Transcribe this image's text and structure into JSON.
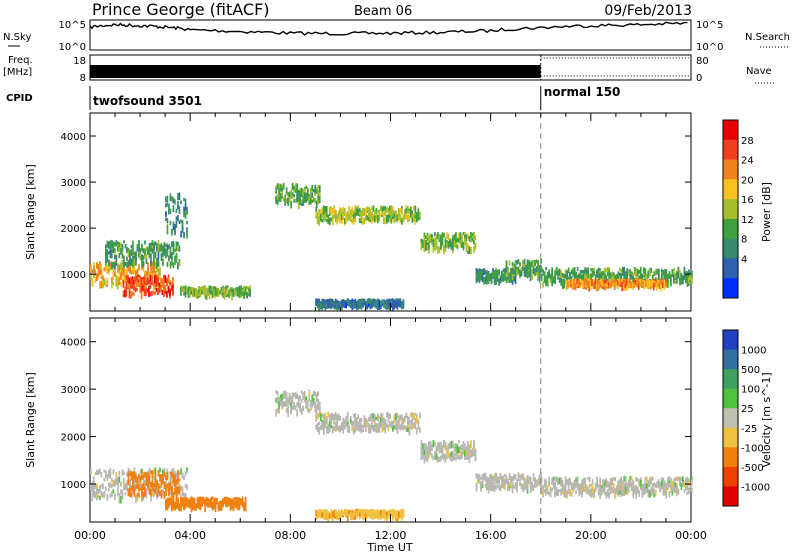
{
  "header": {
    "station": "Prince George (fitACF)",
    "beam": "Beam 06",
    "date": "09/Feb/2013"
  },
  "time_axis": {
    "ticks": [
      "00:00",
      "04:00",
      "08:00",
      "12:00",
      "16:00",
      "20:00",
      "00:00"
    ],
    "tick_hours": [
      0,
      4,
      8,
      12,
      16,
      20,
      24
    ],
    "label": "Time UT",
    "range_hours": [
      0,
      24
    ],
    "minor_step_hours": 1
  },
  "noise_panel": {
    "left_label": "N.Sky",
    "right_label": "N.Search",
    "left_ticks": [
      "10^5",
      "10^0"
    ],
    "right_ticks": [
      "10^5",
      "10^0"
    ]
  },
  "freq_panel": {
    "left_label": "Freq.",
    "left_unit": "[MHz]",
    "left_ticks": [
      "18",
      "8"
    ],
    "right_label": "Nave",
    "right_ticks": [
      "80",
      "0"
    ]
  },
  "cpid_panel": {
    "label": "CPID",
    "modes": [
      {
        "name": "twofsound 3501",
        "start_hour": 0,
        "end_hour": 18
      },
      {
        "name": "normal 150",
        "start_hour": 18,
        "end_hour": 24
      }
    ],
    "switch_hour": 18
  },
  "colors": {
    "power_scale": [
      "#0030ff",
      "#3060b0",
      "#3a8a70",
      "#40a040",
      "#a8c030",
      "#f8c020",
      "#f08020",
      "#f04020",
      "#e80000"
    ],
    "velocity_scale": [
      "#2040c0",
      "#3070a0",
      "#40a060",
      "#50c040",
      "#c0c0b0",
      "#f0c040",
      "#f08010",
      "#f04000",
      "#e00000"
    ],
    "ground_scatter": "#b8b8b0"
  },
  "chart_data": [
    {
      "type": "line",
      "title": "N.Sky / N.Search",
      "x_unit": "hours UT",
      "y_scale": "log",
      "ylim": [
        1,
        100000
      ],
      "series": [
        {
          "x": [
            0,
            1,
            2,
            3,
            4,
            6,
            8,
            10,
            12,
            14,
            16,
            18,
            20,
            22,
            24
          ],
          "values": [
            10000,
            30000,
            20000,
            10000,
            3000,
            1500,
            700,
            600,
            700,
            1000,
            2000,
            8000,
            20000,
            30000,
            60000
          ]
        }
      ]
    },
    {
      "type": "area",
      "title": "Freq. [MHz] / Nave",
      "x_unit": "hours UT",
      "segments": [
        {
          "x_start": 0,
          "x_end": 18,
          "fill": "solid",
          "freq_mhz_range": [
            8,
            18
          ]
        },
        {
          "x_start": 18,
          "x_end": 24,
          "fill": "dotted",
          "nave": [
            0,
            80
          ]
        }
      ]
    },
    {
      "type": "heatmap",
      "quantity": "Power",
      "colorbar_label": "Power [dB]",
      "colorbar_ticks": [
        4,
        8,
        12,
        16,
        20,
        24,
        28
      ],
      "zlim": [
        0,
        32
      ],
      "xlabel": "",
      "ylabel": "Slant Range [km]",
      "y_ticks": [
        1000,
        2000,
        3000,
        4000
      ],
      "xlim": [
        0,
        24
      ],
      "ylim": [
        200,
        4500
      ],
      "echo_bands": [
        {
          "x_start": 0.0,
          "x_end": 2.8,
          "range_center_km": 1050,
          "range_width_km": 500,
          "power_db": 20
        },
        {
          "x_start": 1.3,
          "x_end": 3.3,
          "range_center_km": 800,
          "range_width_km": 400,
          "power_db": 26
        },
        {
          "x_start": 0.6,
          "x_end": 3.6,
          "range_center_km": 1500,
          "range_width_km": 500,
          "power_db": 11
        },
        {
          "x_start": 3.0,
          "x_end": 3.9,
          "range_center_km": 2350,
          "range_width_km": 900,
          "power_db": 9
        },
        {
          "x_start": 3.6,
          "x_end": 6.4,
          "range_center_km": 680,
          "range_width_km": 160,
          "power_db": 14
        },
        {
          "x_start": 7.4,
          "x_end": 9.2,
          "range_center_km": 2780,
          "range_width_km": 420,
          "power_db": 13
        },
        {
          "x_start": 9.0,
          "x_end": 13.2,
          "range_center_km": 2350,
          "range_width_km": 300,
          "power_db": 16
        },
        {
          "x_start": 13.2,
          "x_end": 15.4,
          "range_center_km": 1750,
          "range_width_km": 340,
          "power_db": 14
        },
        {
          "x_start": 15.4,
          "x_end": 17.0,
          "range_center_km": 1020,
          "range_width_km": 240,
          "power_db": 10
        },
        {
          "x_start": 16.6,
          "x_end": 18.0,
          "range_center_km": 1150,
          "range_width_km": 400,
          "power_db": 12
        },
        {
          "x_start": 9.0,
          "x_end": 12.5,
          "range_center_km": 420,
          "range_width_km": 120,
          "power_db": 7
        },
        {
          "x_start": 18.0,
          "x_end": 24.0,
          "range_center_km": 1000,
          "range_width_km": 320,
          "power_db": 12
        },
        {
          "x_start": 19.0,
          "x_end": 23.0,
          "range_center_km": 850,
          "range_width_km": 120,
          "power_db": 22
        }
      ]
    },
    {
      "type": "heatmap",
      "quantity": "Velocity",
      "colorbar_label": "Velocity [m s^-1]",
      "colorbar_ticks": [
        1000,
        500,
        100,
        25,
        -25,
        -100,
        -500,
        -1000
      ],
      "ylabel": "Slant Range [km]",
      "xlabel": "Time UT",
      "y_ticks": [
        1000,
        2000,
        3000,
        4000
      ],
      "xlim": [
        0,
        24
      ],
      "ylim": [
        200,
        4500
      ],
      "echo_bands": [
        {
          "x_start": 0.0,
          "x_end": 3.9,
          "range_center_km": 1050,
          "range_width_km": 600,
          "velocity_ms": 0
        },
        {
          "x_start": 1.5,
          "x_end": 3.6,
          "range_center_km": 1050,
          "range_width_km": 500,
          "velocity_ms": -300
        },
        {
          "x_start": 3.0,
          "x_end": 6.2,
          "range_center_km": 650,
          "range_width_km": 180,
          "velocity_ms": -150
        },
        {
          "x_start": 7.4,
          "x_end": 9.2,
          "range_center_km": 2780,
          "range_width_km": 420,
          "velocity_ms": 0
        },
        {
          "x_start": 9.0,
          "x_end": 13.2,
          "range_center_km": 2350,
          "range_width_km": 340,
          "velocity_ms": 0
        },
        {
          "x_start": 13.2,
          "x_end": 15.4,
          "range_center_km": 1750,
          "range_width_km": 360,
          "velocity_ms": 0
        },
        {
          "x_start": 15.4,
          "x_end": 18.0,
          "range_center_km": 1100,
          "range_width_km": 300,
          "velocity_ms": 0
        },
        {
          "x_start": 9.0,
          "x_end": 12.5,
          "range_center_km": 420,
          "range_width_km": 120,
          "velocity_ms": -80
        },
        {
          "x_start": 18.0,
          "x_end": 24.0,
          "range_center_km": 1000,
          "range_width_km": 340,
          "velocity_ms": 0
        }
      ]
    }
  ]
}
